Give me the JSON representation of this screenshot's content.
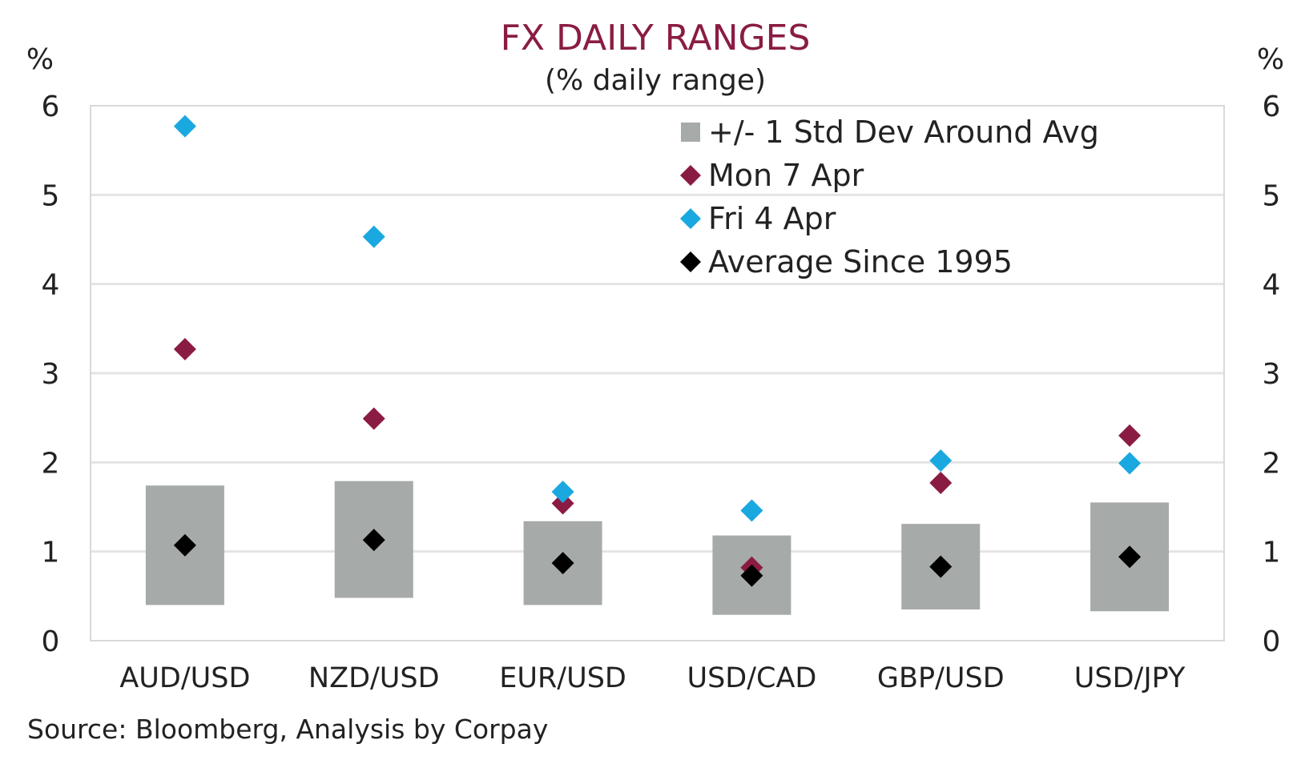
{
  "chart_data": {
    "type": "scatter",
    "title": "FX DAILY RANGES",
    "subtitle": "(% daily range)",
    "y_unit_left": "%",
    "y_unit_right": "%",
    "ylim": [
      0,
      6
    ],
    "yticks": [
      "0",
      "1",
      "2",
      "3",
      "4",
      "5",
      "6"
    ],
    "categories": [
      "AUD/USD",
      "NZD/USD",
      "EUR/USD",
      "USD/CAD",
      "GBP/USD",
      "USD/JPY"
    ],
    "std_band": {
      "name": "+/- 1 Std Dev Around Avg",
      "low": [
        0.4,
        0.48,
        0.4,
        0.29,
        0.35,
        0.33
      ],
      "high": [
        1.74,
        1.79,
        1.34,
        1.18,
        1.31,
        1.55
      ],
      "color": "#a6aaa8"
    },
    "series": [
      {
        "name": "Mon 7 Apr",
        "color": "#8a1c44",
        "values": [
          3.27,
          2.49,
          1.54,
          0.82,
          1.77,
          2.3
        ]
      },
      {
        "name": "Fri 4 Apr",
        "color": "#1aa8e0",
        "values": [
          5.77,
          4.53,
          1.67,
          1.46,
          2.02,
          1.99
        ]
      },
      {
        "name": "Average Since 1995",
        "color": "#000000",
        "values": [
          1.07,
          1.13,
          0.87,
          0.73,
          0.83,
          0.94
        ]
      }
    ],
    "grid": true,
    "legend_position": "top-right"
  },
  "source": "Source: Bloomberg, Analysis by Corpay",
  "colors": {
    "grid": "#e4e4e4",
    "frame": "#d9d9d9"
  }
}
